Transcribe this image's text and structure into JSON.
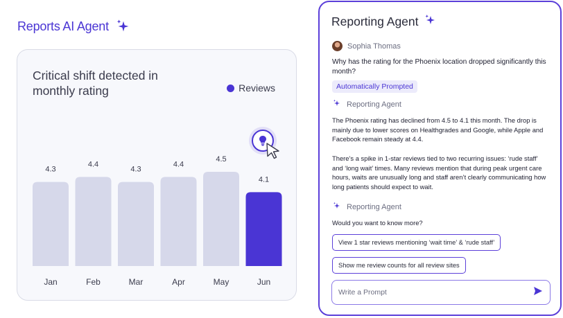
{
  "left": {
    "title": "Reports AI Agent",
    "card_title": "Critical shift detected in monthly rating",
    "legend_label": "Reviews"
  },
  "colors": {
    "accent": "#4a35d4",
    "bar_muted": "#d6d8ea",
    "bar_highlight": "#4a35d4"
  },
  "chart_data": {
    "type": "bar",
    "title": "Critical shift detected in monthly rating",
    "categories": [
      "Jan",
      "Feb",
      "Mar",
      "Apr",
      "May",
      "Jun"
    ],
    "series": [
      {
        "name": "Reviews",
        "values": [
          4.3,
          4.4,
          4.3,
          4.4,
          4.5,
          4.1
        ]
      }
    ],
    "value_labels": [
      "4.3",
      "4.4",
      "4.3",
      "4.4",
      "4.5",
      "4.1"
    ],
    "highlight_index": 5,
    "grid": false,
    "legend": "top-right"
  },
  "panel": {
    "title": "Reporting Agent",
    "user_name": "Sophia Thomas",
    "question": "Why has the rating for the Phoenix location dropped significantly this month?",
    "chip_label": "Automatically Prompted",
    "agent_label_1": "Reporting Agent",
    "answer_p1": "The Phoenix rating has declined from 4.5 to 4.1 this month. The drop is mainly due to lower scores on Healthgrades and Google, while Apple and Facebook remain steady at 4.4.",
    "answer_p2": "There’s a spike in 1-star reviews tied to two recurring issues: ‘rude staff’ and ‘long wait’ times. Many reviews mention that during peak urgent care hours, waits are unusually long and staff aren’t clearly communicating how long patients should expect to wait.",
    "agent_label_2": "Reporting Agent",
    "followup": "Would you want to know more?",
    "action_1": "View 1 star reviews mentioning ‘wait time’ & ‘rude staff’",
    "action_2": "Show me review counts for all review sites",
    "prompt_placeholder": "Write a Prompt"
  },
  "icons": {
    "sparkle": "sparkle-icon",
    "bulb": "lightbulb-icon",
    "cursor": "cursor-icon",
    "send": "send-icon",
    "legend_dot": "legend-dot"
  }
}
